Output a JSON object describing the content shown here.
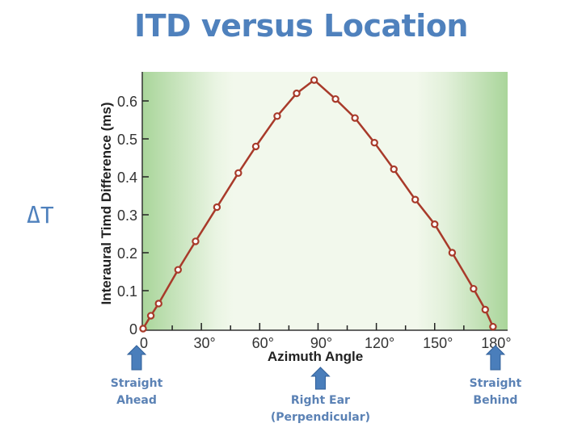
{
  "slide": {
    "title": "ITD versus Location",
    "delta_label": "ΔT"
  },
  "annotations": [
    {
      "label_line1": "Straight",
      "label_line2": "Ahead",
      "x_deg": 0
    },
    {
      "label_line1": "Right Ear",
      "label_line2": "(Perpendicular)",
      "x_deg": 90
    },
    {
      "label_line1": "Straight",
      "label_line2": "Behind",
      "x_deg": 180
    }
  ],
  "chart_data": {
    "type": "line",
    "title": "ITD versus Location",
    "xlabel": "Azimuth Angle",
    "ylabel": "Interaural Timd Difference (ms)",
    "xlim": [
      0,
      185
    ],
    "ylim": [
      0,
      0.68
    ],
    "x_ticks": [
      "0",
      "30°",
      "60°",
      "90°",
      "120°",
      "150°",
      "180°"
    ],
    "y_ticks": [
      "0",
      "0.1",
      "0.2",
      "0.3",
      "0.4",
      "0.5",
      "0.6"
    ],
    "grid": false,
    "legend": null,
    "background": "green gradient shading near 0° and 180°, pale in middle",
    "line_color": "#a83a2a",
    "marker": "open circle",
    "series": [
      {
        "name": "ITD",
        "x": [
          0,
          4,
          8,
          18,
          27,
          38,
          49,
          58,
          69,
          79,
          88,
          99,
          109,
          119,
          129,
          140,
          150,
          159,
          170,
          176,
          180
        ],
        "y": [
          0,
          0.034,
          0.066,
          0.155,
          0.23,
          0.32,
          0.41,
          0.48,
          0.56,
          0.62,
          0.655,
          0.605,
          0.555,
          0.49,
          0.42,
          0.34,
          0.275,
          0.2,
          0.105,
          0.05,
          0.005
        ]
      }
    ]
  }
}
